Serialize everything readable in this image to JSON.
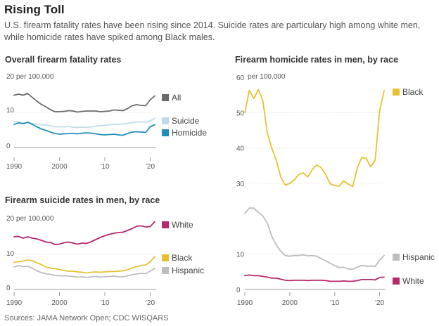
{
  "title": "Rising Toll",
  "subtitle": "U.S. firearm fatality rates have been rising since 2014. Suicide rates are particulary high among white men, while homicide rates have spiked among Black males.",
  "source": "Sources: JAMA Network Open; CDC WISQARS",
  "chart_data": [
    {
      "type": "line",
      "title": "Overall firearm fatality rates",
      "unit_label": "per 100,000",
      "xlim": [
        1990,
        2021
      ],
      "ylim": [
        0,
        20
      ],
      "y_ticks": [
        "20",
        "10",
        "0"
      ],
      "x_ticks": [
        "1990",
        "2000",
        "'10",
        "'20"
      ],
      "x": [
        1990,
        1991,
        1992,
        1993,
        1994,
        1995,
        1996,
        1997,
        1998,
        1999,
        2000,
        2001,
        2002,
        2003,
        2004,
        2005,
        2006,
        2007,
        2008,
        2009,
        2010,
        2011,
        2012,
        2013,
        2014,
        2015,
        2016,
        2017,
        2018,
        2019,
        2020,
        2021
      ],
      "series": [
        {
          "name": "All",
          "color": "#6b6b6b",
          "values": [
            14.9,
            15.2,
            14.9,
            15.4,
            14.3,
            13.2,
            12.3,
            11.6,
            10.8,
            10.2,
            10.2,
            10.3,
            10.5,
            10.4,
            10.1,
            10.3,
            10.4,
            10.4,
            10.4,
            10.2,
            10.3,
            10.4,
            10.7,
            10.6,
            10.5,
            11.1,
            11.9,
            12.2,
            12.0,
            11.9,
            13.6,
            14.7
          ]
        },
        {
          "name": "Suicide",
          "color": "#bfdcea",
          "values": [
            7.4,
            7.3,
            7.0,
            7.1,
            6.8,
            6.7,
            6.5,
            6.4,
            6.2,
            5.9,
            5.9,
            5.9,
            6.0,
            5.8,
            5.7,
            5.8,
            5.7,
            5.9,
            6.1,
            6.2,
            6.3,
            6.5,
            6.6,
            6.6,
            6.7,
            6.9,
            7.1,
            7.3,
            7.3,
            7.2,
            7.6,
            8.3
          ]
        },
        {
          "name": "Homicide",
          "color": "#1f8fb9",
          "values": [
            6.6,
            7.0,
            6.8,
            7.2,
            6.6,
            5.9,
            5.3,
            4.9,
            4.4,
            4.0,
            3.8,
            3.9,
            4.0,
            4.0,
            3.9,
            4.1,
            4.2,
            4.1,
            3.9,
            3.7,
            3.6,
            3.7,
            3.8,
            3.6,
            3.5,
            4.0,
            4.4,
            4.5,
            4.4,
            4.3,
            5.9,
            6.5
          ]
        }
      ]
    },
    {
      "type": "line",
      "title": "Firearm suicide rates in men, by race",
      "unit_label": "per 100,000",
      "xlim": [
        1990,
        2021
      ],
      "ylim": [
        0,
        20
      ],
      "y_ticks": [
        "20",
        "10",
        "0"
      ],
      "x_ticks": [
        "1990",
        "2000",
        "'10",
        "'20"
      ],
      "x": [
        1990,
        1991,
        1992,
        1993,
        1994,
        1995,
        1996,
        1997,
        1998,
        1999,
        2000,
        2001,
        2002,
        2003,
        2004,
        2005,
        2006,
        2007,
        2008,
        2009,
        2010,
        2011,
        2012,
        2013,
        2014,
        2015,
        2016,
        2017,
        2018,
        2019,
        2020,
        2021
      ],
      "series": [
        {
          "name": "White",
          "color": "#b5286b",
          "values": [
            15.0,
            15.1,
            14.6,
            15.0,
            14.6,
            14.4,
            14.0,
            13.5,
            13.4,
            12.8,
            12.9,
            13.3,
            13.5,
            13.2,
            12.9,
            13.2,
            13.1,
            13.6,
            14.2,
            14.8,
            15.3,
            15.7,
            16.0,
            16.2,
            16.3,
            16.8,
            17.3,
            18.0,
            18.1,
            17.8,
            17.9,
            19.3
          ]
        },
        {
          "name": "Black",
          "color": "#e6c131",
          "values": [
            7.7,
            7.9,
            8.1,
            8.4,
            8.2,
            7.6,
            7.1,
            6.4,
            6.1,
            5.9,
            5.7,
            5.4,
            5.2,
            5.2,
            5.0,
            4.9,
            4.7,
            4.9,
            5.0,
            4.9,
            5.0,
            5.1,
            5.1,
            5.2,
            5.3,
            5.6,
            6.1,
            6.5,
            6.8,
            7.0,
            7.9,
            9.3
          ]
        },
        {
          "name": "Hispanic",
          "color": "#bdbdbd",
          "values": [
            6.4,
            6.8,
            6.5,
            6.6,
            6.1,
            5.3,
            4.8,
            4.5,
            4.3,
            4.0,
            3.9,
            3.9,
            3.8,
            3.7,
            3.5,
            3.6,
            3.4,
            3.6,
            3.7,
            3.5,
            3.6,
            3.7,
            3.8,
            3.6,
            3.6,
            3.9,
            4.2,
            4.4,
            4.6,
            4.5,
            5.2,
            6.0
          ]
        }
      ]
    },
    {
      "type": "line",
      "title": "Firearm homicide rates in men, by race",
      "unit_label": "per 100,000",
      "xlim": [
        1990,
        2021
      ],
      "ylim": [
        0,
        60
      ],
      "y_ticks": [
        "60",
        "50",
        "40",
        "30",
        "10",
        "0"
      ],
      "x_ticks": [
        "1990",
        "2000",
        "'10",
        "'20"
      ],
      "x": [
        1990,
        1991,
        1992,
        1993,
        1994,
        1995,
        1996,
        1997,
        1998,
        1999,
        2000,
        2001,
        2002,
        2003,
        2004,
        2005,
        2006,
        2007,
        2008,
        2009,
        2010,
        2011,
        2012,
        2013,
        2014,
        2015,
        2016,
        2017,
        2018,
        2019,
        2020,
        2021
      ],
      "series": [
        {
          "name": "Black",
          "color": "#e6c131",
          "values": [
            50.0,
            56.3,
            54.0,
            56.5,
            53.5,
            44.3,
            40.0,
            36.5,
            31.8,
            29.5,
            30.0,
            31.0,
            32.5,
            33.0,
            31.8,
            33.9,
            35.2,
            34.4,
            32.5,
            29.9,
            29.4,
            29.2,
            30.7,
            29.8,
            29.1,
            34.3,
            37.3,
            37.1,
            34.7,
            36.5,
            50.5,
            56.2
          ]
        },
        {
          "name": "Hispanic",
          "color": "#bdbdbd",
          "values": [
            21.5,
            23.0,
            23.0,
            21.8,
            20.8,
            18.8,
            15.0,
            12.6,
            10.8,
            9.6,
            9.4,
            9.6,
            9.6,
            9.8,
            9.5,
            9.6,
            9.4,
            8.7,
            8.1,
            7.4,
            6.8,
            6.2,
            6.3,
            5.8,
            5.7,
            6.3,
            6.8,
            6.6,
            6.6,
            6.5,
            8.3,
            9.6
          ]
        },
        {
          "name": "White",
          "color": "#b5286b",
          "values": [
            3.9,
            4.1,
            3.9,
            3.9,
            3.7,
            3.5,
            3.2,
            3.2,
            2.9,
            2.6,
            2.5,
            2.6,
            2.6,
            2.6,
            2.5,
            2.6,
            2.6,
            2.6,
            2.5,
            2.3,
            2.3,
            2.3,
            2.4,
            2.3,
            2.3,
            2.5,
            2.8,
            2.8,
            2.8,
            2.7,
            3.4,
            3.5
          ]
        }
      ]
    }
  ]
}
